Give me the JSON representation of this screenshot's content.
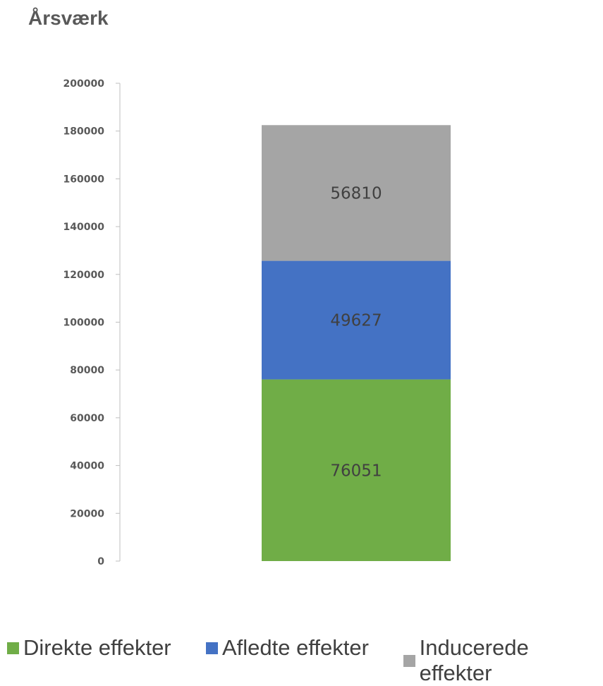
{
  "chart_data": {
    "type": "bar",
    "stacked": true,
    "title": "Årsværk",
    "xlabel": "",
    "ylabel": "",
    "ylim": [
      0,
      200000
    ],
    "yticks": [
      "0",
      "20000",
      "40000",
      "60000",
      "80000",
      "100000",
      "120000",
      "140000",
      "160000",
      "180000",
      "200000"
    ],
    "categories": [
      ""
    ],
    "series": [
      {
        "name": "Direkte effekter",
        "values": [
          76051
        ],
        "label": "76051",
        "color": "#70ad47"
      },
      {
        "name": "Afledte effekter",
        "values": [
          49627
        ],
        "label": "49627",
        "color": "#4472c4"
      },
      {
        "name": "Inducerede effekter",
        "values": [
          56810
        ],
        "label": "56810",
        "color": "#a5a5a5"
      }
    ],
    "legend": {
      "position": "bottom"
    },
    "grid": false
  }
}
